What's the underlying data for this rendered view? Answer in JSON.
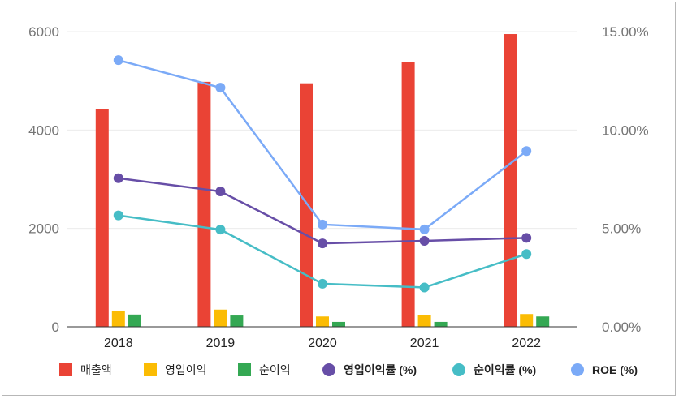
{
  "chart_data": {
    "type": "bar",
    "categories": [
      "2018",
      "2019",
      "2020",
      "2021",
      "2022"
    ],
    "left_axis": {
      "ylim": [
        0,
        6000
      ],
      "ticks": [
        "0",
        "2000",
        "4000",
        "6000"
      ],
      "tick_values": [
        0,
        2000,
        4000,
        6000
      ]
    },
    "right_axis": {
      "ylim": [
        0,
        0.15
      ],
      "ticks": [
        "0.00%",
        "5.00%",
        "10.00%",
        "15.00%"
      ],
      "tick_values": [
        0,
        0.05,
        0.1,
        0.15
      ]
    },
    "bar_series": [
      {
        "name": "매출액",
        "color": "#ea4335",
        "values": [
          4420,
          4980,
          4950,
          5390,
          5950
        ]
      },
      {
        "name": "영업이익",
        "color": "#fbbc04",
        "values": [
          330,
          350,
          210,
          240,
          260
        ]
      },
      {
        "name": "순이익",
        "color": "#34a853",
        "values": [
          250,
          230,
          100,
          100,
          210
        ]
      }
    ],
    "line_series": [
      {
        "name": "영업이익률 (%)",
        "color": "#674ea7",
        "values": [
          0.0755,
          0.0688,
          0.0424,
          0.0437,
          0.0452
        ]
      },
      {
        "name": "순이익률 (%)",
        "color": "#46bdc6",
        "values": [
          0.0566,
          0.0494,
          0.0219,
          0.02,
          0.037
        ]
      },
      {
        "name": "ROE (%)",
        "color": "#7baaf7",
        "values": [
          0.1355,
          0.1215,
          0.052,
          0.0495,
          0.0893
        ]
      }
    ],
    "legend_position": "bottom",
    "grid": true
  }
}
